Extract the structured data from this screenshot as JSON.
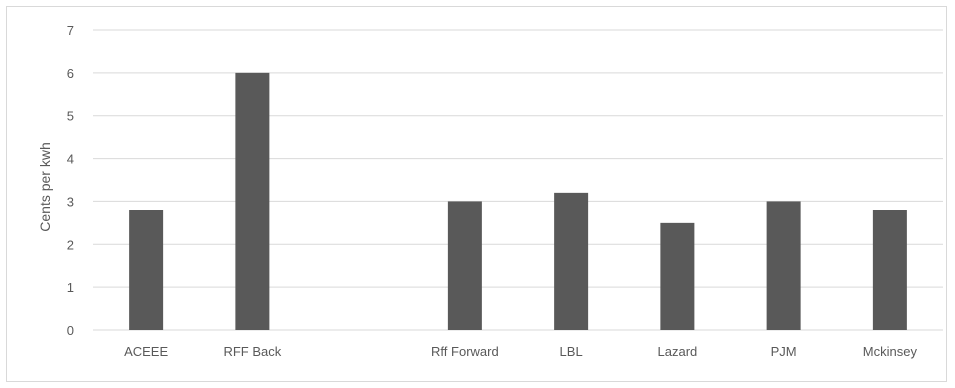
{
  "chart_data": {
    "type": "bar",
    "title": "",
    "xlabel": "",
    "ylabel": "Cents per kwh",
    "ylim": [
      0,
      7
    ],
    "yticks": [
      0,
      1,
      2,
      3,
      4,
      5,
      6,
      7
    ],
    "grid": true,
    "legend": "none",
    "categories": [
      "ACEEE",
      "RFF Back",
      "",
      "Rff Forward",
      "LBL",
      "Lazard",
      "PJM",
      "Mckinsey"
    ],
    "values": [
      2.8,
      6,
      null,
      3,
      3.2,
      2.5,
      3,
      2.8
    ],
    "colors": {
      "bar": "#595959",
      "grid": "#d9d9d9",
      "text": "#595959"
    }
  }
}
